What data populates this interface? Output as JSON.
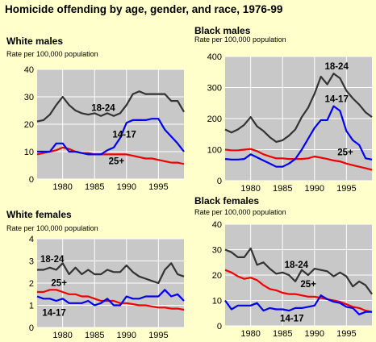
{
  "title": "Homicide offending by age, gender, and race, 1976-99",
  "colors": {
    "background": "#ffffcc",
    "plot": "#c8c8c8",
    "grid": "#ffffff",
    "age_18_24": "#333333",
    "age_14_17": "#0000ee",
    "age_25_plus": "#ee0000"
  },
  "chart_data": [
    {
      "id": "white-males",
      "type": "line",
      "title": "White males",
      "subtitle": "Rate per 100,000 population",
      "x": [
        1976,
        1977,
        1978,
        1979,
        1980,
        1981,
        1982,
        1983,
        1984,
        1985,
        1986,
        1987,
        1988,
        1989,
        1990,
        1991,
        1992,
        1993,
        1994,
        1995,
        1996,
        1997,
        1998,
        1999
      ],
      "xlim": [
        1976,
        1999
      ],
      "xticks": [
        "1980",
        "1985",
        "1990",
        "1995"
      ],
      "ylim": [
        0,
        40
      ],
      "yticks": [
        "0",
        "10",
        "20",
        "30",
        "40"
      ],
      "series": [
        {
          "name": "18-24",
          "color": "#333333",
          "values": [
            21,
            21.5,
            23.5,
            27,
            30,
            27,
            25,
            24,
            23.5,
            24,
            23,
            24,
            23,
            24,
            27,
            31,
            32,
            31,
            31,
            31,
            31,
            28.5,
            28.5,
            24.5
          ]
        },
        {
          "name": "14-17",
          "color": "#0000ee",
          "values": [
            10,
            10,
            10,
            13,
            13,
            10,
            10,
            9.5,
            9,
            9,
            9,
            10.5,
            11.5,
            15,
            20.5,
            21.5,
            21.5,
            21.5,
            22,
            22,
            18,
            15.5,
            13,
            10
          ]
        },
        {
          "name": "25+",
          "color": "#ee0000",
          "values": [
            9,
            9.5,
            10,
            10.5,
            11.5,
            11,
            10,
            9.5,
            9.5,
            9,
            9,
            9,
            9,
            9,
            9,
            8.5,
            8,
            7.5,
            7.5,
            7,
            6.5,
            6,
            6,
            5.5
          ]
        }
      ],
      "annotations": [
        {
          "text": "18-24",
          "x": 1984.5,
          "y": 24.8
        },
        {
          "text": "14-17",
          "x": 1987.8,
          "y": 15.2
        },
        {
          "text": "25+",
          "x": 1987.2,
          "y": 5.5
        }
      ]
    },
    {
      "id": "black-males",
      "type": "line",
      "title": "Black males",
      "subtitle": "Rate per 100,000 population",
      "x": [
        1976,
        1977,
        1978,
        1979,
        1980,
        1981,
        1982,
        1983,
        1984,
        1985,
        1986,
        1987,
        1988,
        1989,
        1990,
        1991,
        1992,
        1993,
        1994,
        1995,
        1996,
        1997,
        1998,
        1999
      ],
      "xlim": [
        1976,
        1999
      ],
      "xticks": [
        "1980",
        "1985",
        "1990",
        "1995"
      ],
      "ylim": [
        0,
        400
      ],
      "yticks": [
        "0",
        "100",
        "200",
        "300",
        "400"
      ],
      "series": [
        {
          "name": "18-24",
          "color": "#333333",
          "values": [
            165,
            155,
            165,
            180,
            205,
            175,
            160,
            140,
            125,
            130,
            145,
            165,
            205,
            235,
            280,
            335,
            310,
            345,
            330,
            290,
            265,
            245,
            220,
            205
          ]
        },
        {
          "name": "14-17",
          "color": "#0000ee",
          "values": [
            70,
            68,
            68,
            70,
            85,
            75,
            65,
            55,
            45,
            45,
            55,
            70,
            100,
            135,
            170,
            195,
            195,
            240,
            225,
            160,
            130,
            115,
            72,
            68
          ]
        },
        {
          "name": "25+",
          "color": "#ee0000",
          "values": [
            100,
            98,
            98,
            100,
            102,
            95,
            85,
            78,
            72,
            72,
            70,
            70,
            70,
            72,
            78,
            74,
            70,
            65,
            62,
            55,
            50,
            45,
            40,
            35
          ]
        }
      ],
      "annotations": [
        {
          "text": "18-24",
          "x": 1991.6,
          "y": 358
        },
        {
          "text": "14-17",
          "x": 1991.6,
          "y": 253
        },
        {
          "text": "25+",
          "x": 1993.6,
          "y": 82
        }
      ]
    },
    {
      "id": "white-females",
      "type": "line",
      "title": "White females",
      "subtitle": "Rate per 100,000 population",
      "x": [
        1976,
        1977,
        1978,
        1979,
        1980,
        1981,
        1982,
        1983,
        1984,
        1985,
        1986,
        1987,
        1988,
        1989,
        1990,
        1991,
        1992,
        1993,
        1994,
        1995,
        1996,
        1997,
        1998,
        1999
      ],
      "xlim": [
        1976,
        1999
      ],
      "xticks": [
        "1980",
        "1985",
        "1990",
        "1995"
      ],
      "ylim": [
        0,
        4
      ],
      "yticks": [
        "0",
        "1",
        "2",
        "3",
        "4"
      ],
      "series": [
        {
          "name": "18-24",
          "color": "#333333",
          "values": [
            2.6,
            2.6,
            2.7,
            2.6,
            2.9,
            2.4,
            2.7,
            2.4,
            2.6,
            2.4,
            2.4,
            2.6,
            2.5,
            2.5,
            2.8,
            2.5,
            2.3,
            2.2,
            2.1,
            2.0,
            2.6,
            2.9,
            2.4,
            2.3
          ]
        },
        {
          "name": "14-17",
          "color": "#0000ee",
          "values": [
            1.4,
            1.3,
            1.3,
            1.2,
            1.3,
            1.1,
            1.1,
            1.1,
            1.2,
            1.0,
            1.1,
            1.3,
            1.0,
            1.0,
            1.4,
            1.3,
            1.3,
            1.4,
            1.4,
            1.4,
            1.7,
            1.4,
            1.5,
            1.2
          ]
        },
        {
          "name": "25+",
          "color": "#ee0000",
          "values": [
            1.6,
            1.6,
            1.7,
            1.7,
            1.6,
            1.5,
            1.5,
            1.4,
            1.4,
            1.3,
            1.2,
            1.2,
            1.2,
            1.1,
            1.1,
            1.05,
            1.0,
            1.0,
            0.95,
            0.9,
            0.9,
            0.85,
            0.85,
            0.8
          ]
        }
      ],
      "annotations": [
        {
          "text": "18-24",
          "x": 1976.5,
          "y": 2.95
        },
        {
          "text": "25+",
          "x": 1978.2,
          "y": 1.88
        },
        {
          "text": "14-17",
          "x": 1976.8,
          "y": 0.52
        }
      ]
    },
    {
      "id": "black-females",
      "type": "line",
      "title": "Black females",
      "subtitle": "Rate per 100,000 population",
      "x": [
        1976,
        1977,
        1978,
        1979,
        1980,
        1981,
        1982,
        1983,
        1984,
        1985,
        1986,
        1987,
        1988,
        1989,
        1990,
        1991,
        1992,
        1993,
        1994,
        1995,
        1996,
        1997,
        1998,
        1999
      ],
      "xlim": [
        1976,
        1999
      ],
      "xticks": [
        "1980",
        "1985",
        "1990",
        "1995"
      ],
      "ylim": [
        0,
        40
      ],
      "yticks": [
        "0",
        "10",
        "20",
        "30",
        "40"
      ],
      "series": [
        {
          "name": "18-24",
          "color": "#333333",
          "values": [
            30,
            29,
            27,
            27,
            30.5,
            24,
            25,
            22.5,
            20.5,
            21,
            20,
            17.5,
            22,
            20,
            22.5,
            22,
            21.5,
            19.5,
            21,
            19.5,
            15.5,
            17.5,
            16,
            12.5
          ]
        },
        {
          "name": "14-17",
          "color": "#0000ee",
          "values": [
            10,
            6.5,
            8,
            8,
            8,
            9,
            6,
            7,
            6.5,
            6.5,
            6,
            7,
            7,
            7.5,
            8,
            12,
            10.5,
            9.5,
            9,
            7.5,
            7,
            4.5,
            5.5,
            5.5
          ]
        },
        {
          "name": "25+",
          "color": "#ee0000",
          "values": [
            22,
            21,
            19.5,
            18.5,
            19,
            18,
            16,
            14.5,
            14,
            13,
            12.5,
            12.5,
            12,
            11.5,
            11.5,
            11,
            10.5,
            10,
            9.5,
            8.5,
            7.5,
            7,
            6,
            5.5
          ]
        }
      ],
      "annotations": [
        {
          "text": "18-24",
          "x": 1985.3,
          "y": 22.8
        },
        {
          "text": "25+",
          "x": 1987.8,
          "y": 15.2
        },
        {
          "text": "14-17",
          "x": 1984.6,
          "y": 1.8
        }
      ]
    }
  ]
}
